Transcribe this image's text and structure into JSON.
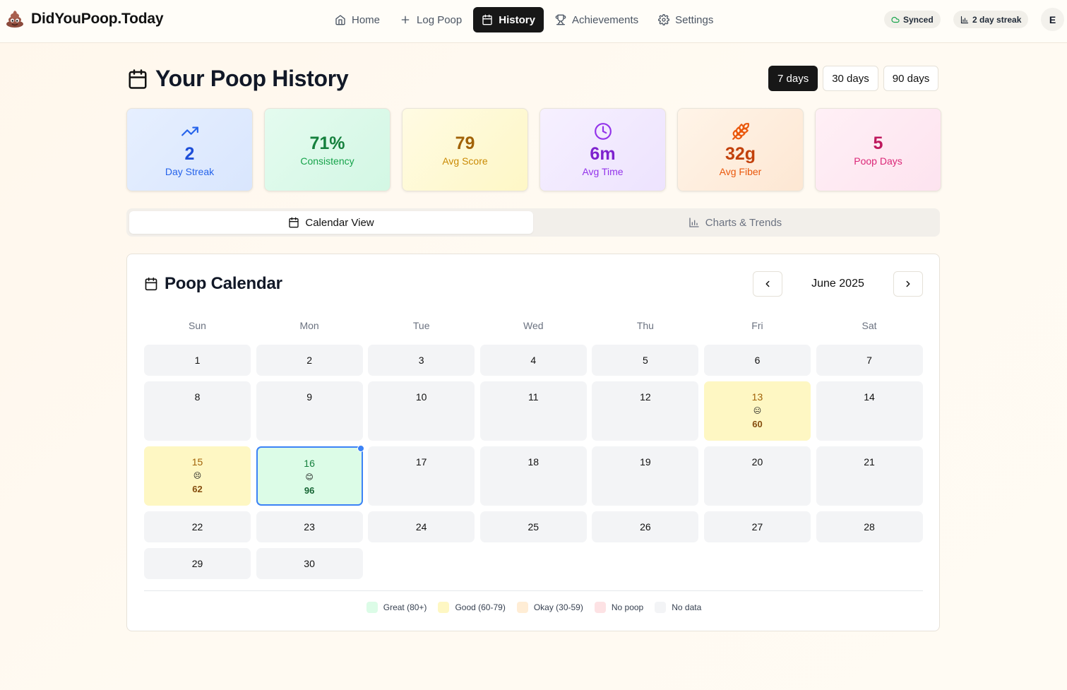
{
  "app": {
    "name": "DidYouPoop.Today"
  },
  "nav": [
    {
      "label": "Home",
      "icon": "home-icon",
      "active": false
    },
    {
      "label": "Log Poop",
      "icon": "plus-icon",
      "active": false
    },
    {
      "label": "History",
      "icon": "calendar-icon",
      "active": true
    },
    {
      "label": "Achievements",
      "icon": "trophy-icon",
      "active": false
    },
    {
      "label": "Settings",
      "icon": "gear-icon",
      "active": false
    }
  ],
  "status": {
    "sync_label": "Synced",
    "streak_label": "2 day streak",
    "avatar_initial": "E"
  },
  "page": {
    "title": "Your Poop History"
  },
  "ranges": [
    {
      "label": "7 days",
      "active": true
    },
    {
      "label": "30 days",
      "active": false
    },
    {
      "label": "90 days",
      "active": false
    }
  ],
  "stats": [
    {
      "value": "2",
      "label": "Day Streak",
      "icon": "trending-up-icon",
      "color": "#2563eb"
    },
    {
      "value": "71%",
      "label": "Consistency",
      "icon": "",
      "color": "#16a34a"
    },
    {
      "value": "79",
      "label": "Avg Score",
      "icon": "",
      "color": "#ca8a04"
    },
    {
      "value": "6m",
      "label": "Avg Time",
      "icon": "clock-icon",
      "color": "#9333ea"
    },
    {
      "value": "32g",
      "label": "Avg Fiber",
      "icon": "wheat-icon",
      "color": "#ea580c"
    },
    {
      "value": "5",
      "label": "Poop Days",
      "icon": "",
      "color": "#db2777"
    }
  ],
  "tabs": [
    {
      "label": "Calendar View",
      "icon": "calendar-icon",
      "active": true
    },
    {
      "label": "Charts & Trends",
      "icon": "bar-chart-icon",
      "active": false
    }
  ],
  "calendar": {
    "title": "Poop Calendar",
    "month_label": "June 2025",
    "weekdays": [
      "Sun",
      "Mon",
      "Tue",
      "Wed",
      "Thu",
      "Fri",
      "Sat"
    ],
    "start_offset": 0,
    "days_in_month": 30,
    "today": 16,
    "entries": [
      {
        "day": 13,
        "emoji": "😐",
        "score": "60",
        "rating": "good"
      },
      {
        "day": 15,
        "emoji": "😣",
        "score": "62",
        "rating": "good"
      },
      {
        "day": 16,
        "emoji": "😊",
        "score": "96",
        "rating": "great"
      }
    ],
    "legend": [
      {
        "label": "Great (80+)",
        "color": "#dcfce7"
      },
      {
        "label": "Good (60-79)",
        "color": "#fef7c3"
      },
      {
        "label": "Okay (30-59)",
        "color": "#ffedd5"
      },
      {
        "label": "No poop",
        "color": "#fde2e4"
      },
      {
        "label": "No data",
        "color": "#f3f4f6"
      }
    ]
  },
  "colors": {
    "accent": "#171717",
    "today_ring": "#3b82f6"
  }
}
